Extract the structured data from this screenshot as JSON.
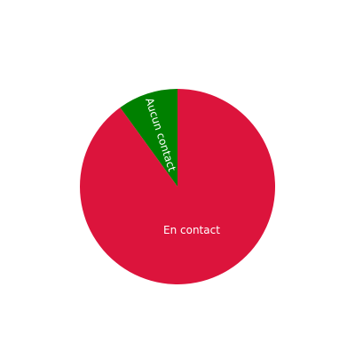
{
  "chart_data": {
    "type": "pie",
    "title": "",
    "start": "top",
    "direction": "counterclockwise",
    "slices": [
      {
        "label": "Aucun contact",
        "value": 10,
        "color": "#008000"
      },
      {
        "label": "En contact",
        "value": 90,
        "color": "#DC143C"
      }
    ]
  }
}
